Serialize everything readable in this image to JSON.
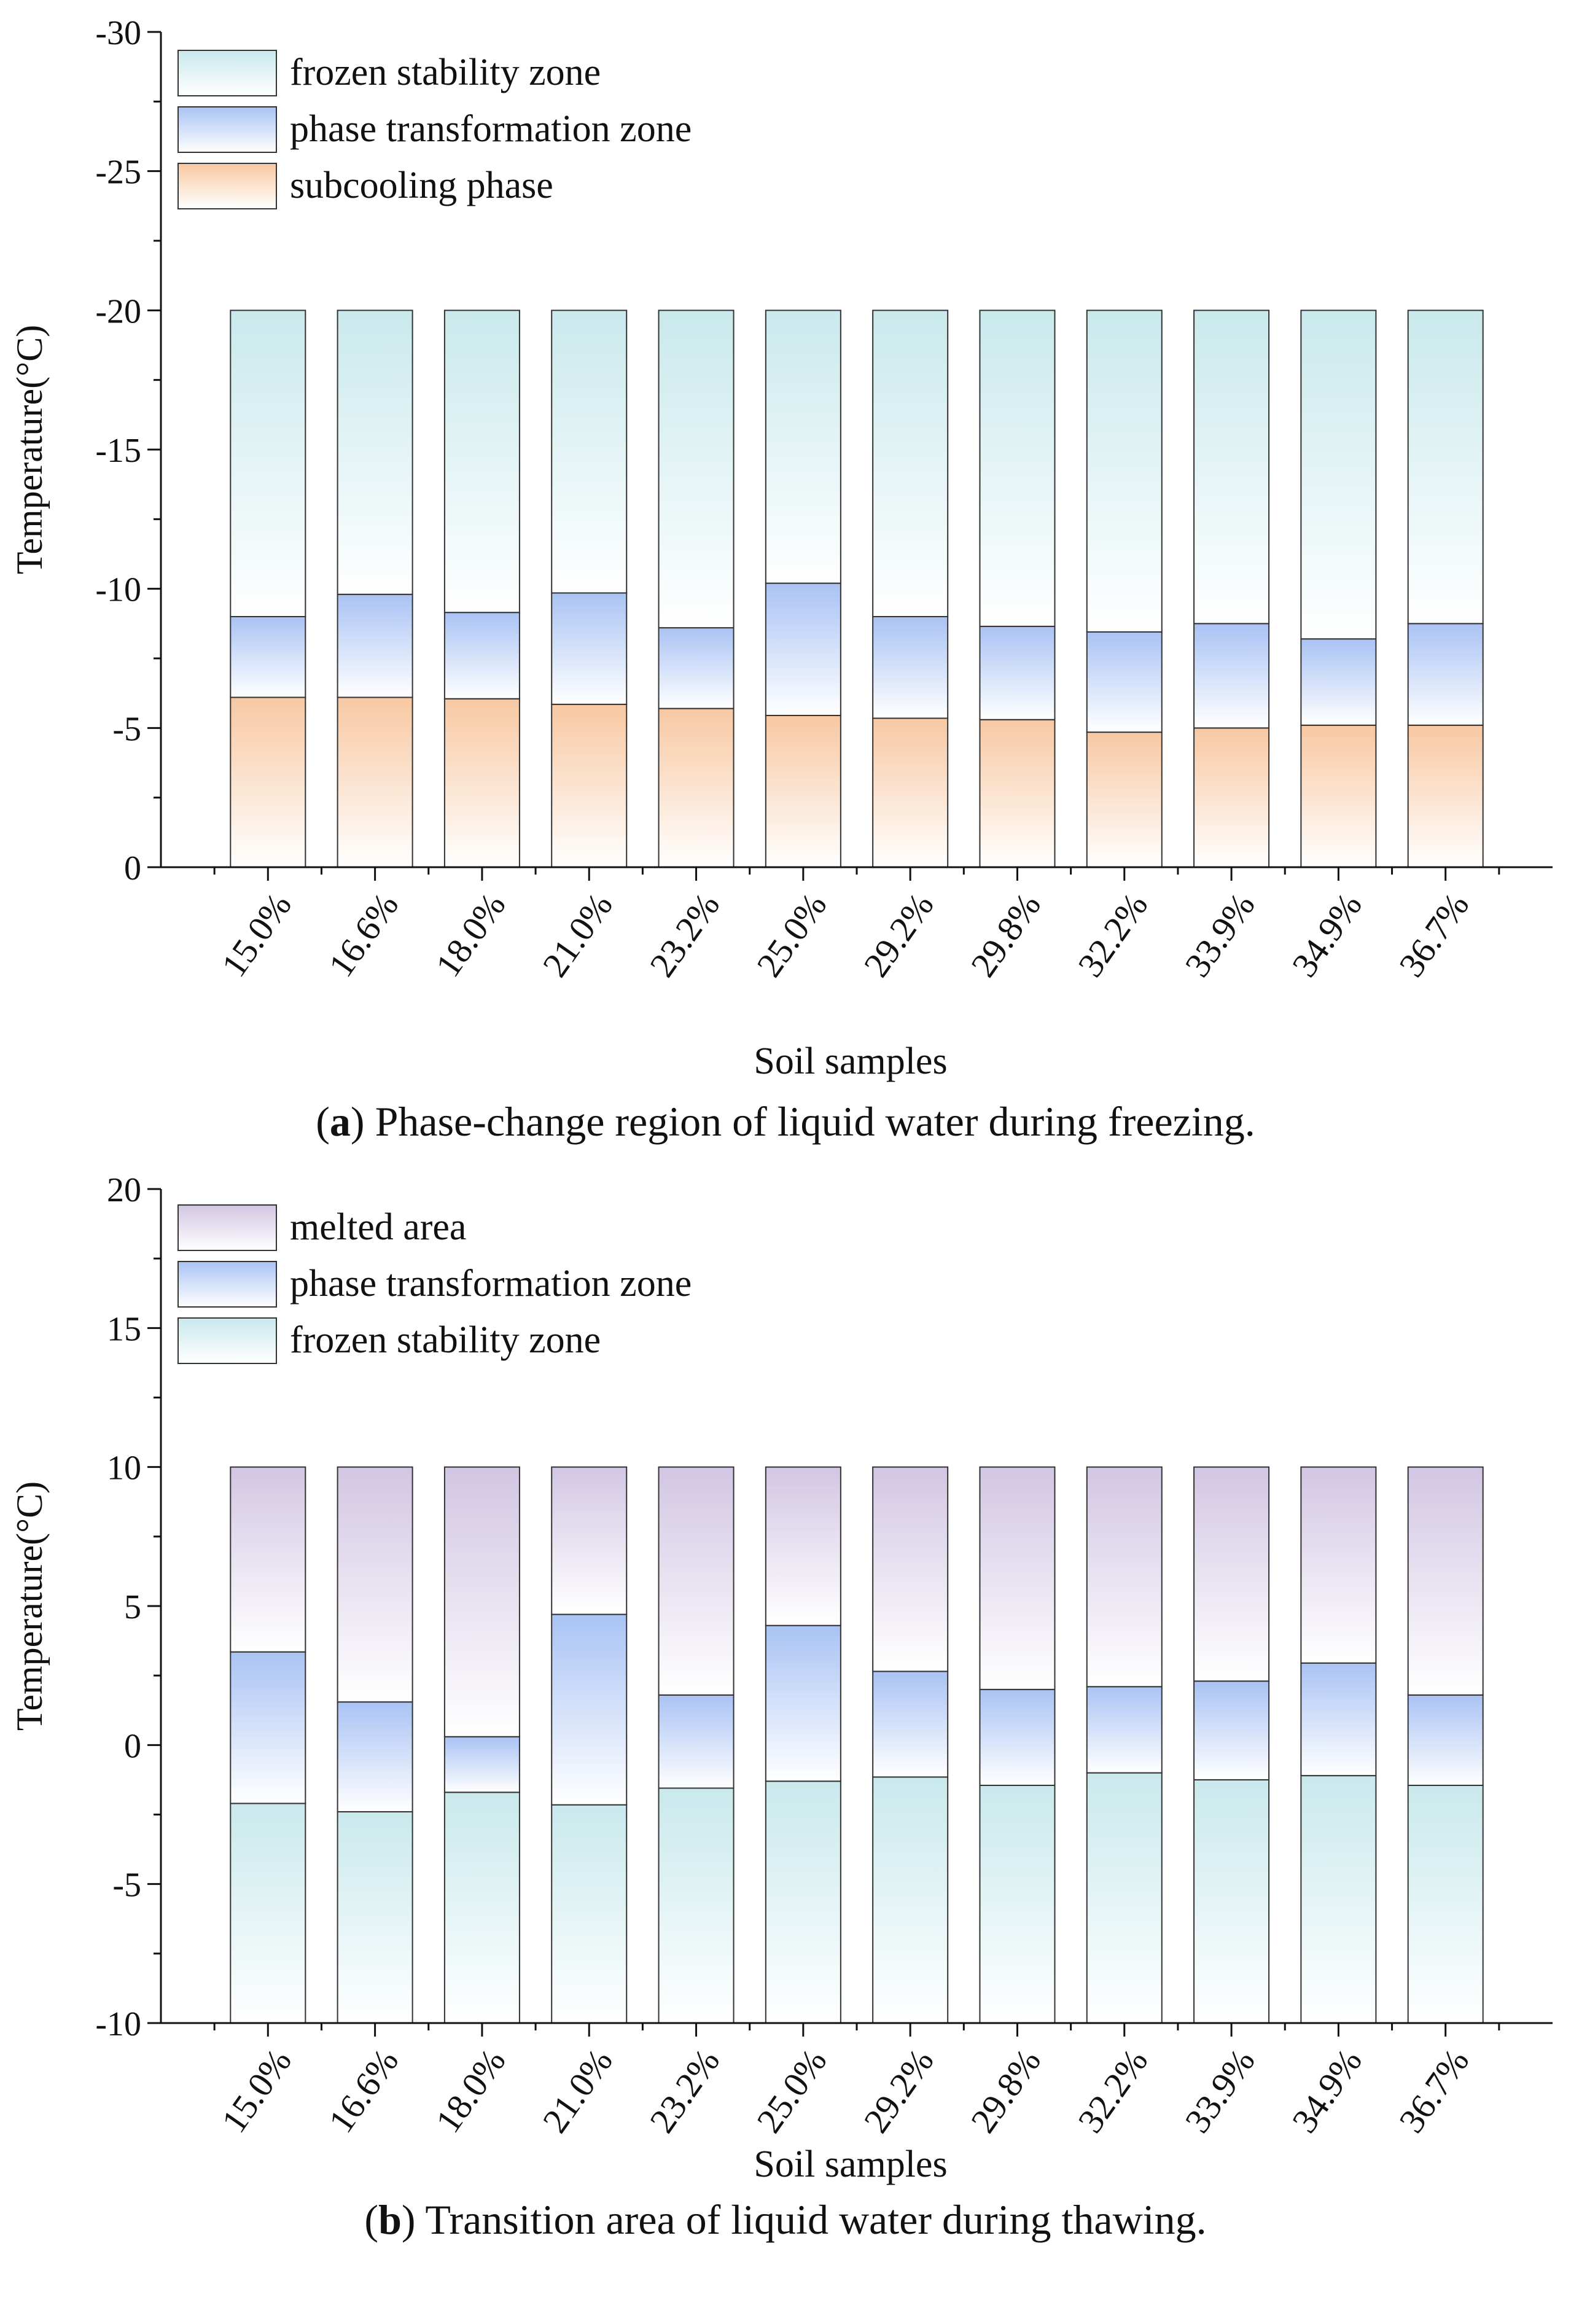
{
  "chart_data": [
    {
      "type": "bar",
      "stacked": true,
      "panel": "a",
      "caption_letter": "a",
      "caption_text": "Phase-change region of liquid water during freezing.",
      "xlabel": "Soil samples",
      "ylabel": "Temperature(°C)",
      "ylim": [
        0,
        -30
      ],
      "yticks": [
        "0",
        "-5",
        "-10",
        "-15",
        "-20",
        "-25",
        "-30"
      ],
      "ytick_values": [
        0,
        -5,
        -10,
        -15,
        -20,
        -25,
        -30
      ],
      "categories": [
        "15.0%",
        "16.6%",
        "18.0%",
        "21.0%",
        "23.2%",
        "25.0%",
        "29.2%",
        "29.8%",
        "32.2%",
        "33.9%",
        "34.9%",
        "36.7%"
      ],
      "legend_position": "top-left",
      "series": [
        {
          "name": "subcooling phase",
          "key": "subcool",
          "range_from": [
            0,
            0,
            0,
            0,
            0,
            0,
            0,
            0,
            0,
            0,
            0,
            0
          ],
          "range_to": [
            -6.1,
            -6.1,
            -6.05,
            -5.85,
            -5.7,
            -5.45,
            -5.35,
            -5.3,
            -4.85,
            -5.0,
            -5.1,
            -5.1
          ]
        },
        {
          "name": "phase transformation zone",
          "key": "phase",
          "range_from": [
            -6.1,
            -6.1,
            -6.05,
            -5.85,
            -5.7,
            -5.45,
            -5.35,
            -5.3,
            -4.85,
            -5.0,
            -5.1,
            -5.1
          ],
          "range_to": [
            -9.0,
            -9.8,
            -9.15,
            -9.85,
            -8.6,
            -10.2,
            -9.0,
            -8.65,
            -8.45,
            -8.75,
            -8.2,
            -8.75
          ]
        },
        {
          "name": "frozen stability zone",
          "key": "frozen",
          "range_from": [
            -9.0,
            -9.8,
            -9.15,
            -9.85,
            -8.6,
            -10.2,
            -9.0,
            -8.65,
            -8.45,
            -8.75,
            -8.2,
            -8.75
          ],
          "range_to": [
            -20,
            -20,
            -20,
            -20,
            -20,
            -20,
            -20,
            -20,
            -20,
            -20,
            -20,
            -20
          ]
        }
      ],
      "legend_order": [
        "frozen",
        "phase",
        "subcool"
      ]
    },
    {
      "type": "bar",
      "stacked": true,
      "panel": "b",
      "caption_letter": "b",
      "caption_text": "Transition area of liquid water during thawing.",
      "xlabel": "Soil samples",
      "ylabel": "Temperature(°C)",
      "ylim": [
        -10,
        20
      ],
      "yticks": [
        "-10",
        "-5",
        "0",
        "5",
        "10",
        "15",
        "20"
      ],
      "ytick_values": [
        -10,
        -5,
        0,
        5,
        10,
        15,
        20
      ],
      "categories": [
        "15.0%",
        "16.6%",
        "18.0%",
        "21.0%",
        "23.2%",
        "25.0%",
        "29.2%",
        "29.8%",
        "32.2%",
        "33.9%",
        "34.9%",
        "36.7%"
      ],
      "legend_position": "top-left",
      "series": [
        {
          "name": "frozen stability zone",
          "key": "frozen",
          "range_from": [
            -10,
            -10,
            -10,
            -10,
            -10,
            -10,
            -10,
            -10,
            -10,
            -10,
            -10,
            -10
          ],
          "range_to": [
            -2.1,
            -2.4,
            -1.7,
            -2.15,
            -1.55,
            -1.3,
            -1.15,
            -1.45,
            -1.0,
            -1.25,
            -1.1,
            -1.45
          ]
        },
        {
          "name": "phase transformation zone",
          "key": "phase",
          "range_from": [
            -2.1,
            -2.4,
            -1.7,
            -2.15,
            -1.55,
            -1.3,
            -1.15,
            -1.45,
            -1.0,
            -1.25,
            -1.1,
            -1.45
          ],
          "range_to": [
            3.35,
            1.55,
            0.3,
            4.7,
            1.8,
            4.3,
            2.65,
            2.0,
            2.1,
            2.3,
            2.95,
            1.8
          ]
        },
        {
          "name": "melted area",
          "key": "melted",
          "range_from": [
            3.35,
            1.55,
            0.3,
            4.7,
            1.8,
            4.3,
            2.65,
            2.0,
            2.1,
            2.3,
            2.95,
            1.8
          ],
          "range_to": [
            10,
            10,
            10,
            10,
            10,
            10,
            10,
            10,
            10,
            10,
            10,
            10
          ]
        }
      ],
      "legend_order": [
        "melted",
        "phase",
        "frozen"
      ]
    }
  ]
}
